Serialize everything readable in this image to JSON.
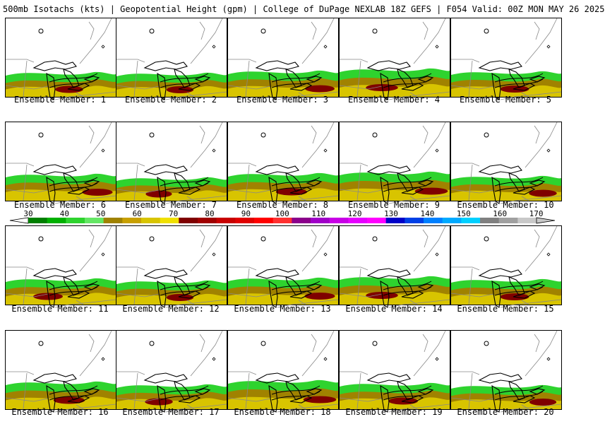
{
  "title": "500mb Isotachs (kts) | Geopotential Height (gpm) | College of DuPage NEXLAB   18Z GEFS | F054 Valid: 00Z MON MAY 26 2025",
  "member_label_prefix": "Ensemble Member: ",
  "members": [
    {
      "n": "1",
      "wave": 0.3,
      "pos": 1
    },
    {
      "n": "2",
      "wave": 0.2,
      "pos": 1
    },
    {
      "n": "3",
      "wave": 0.5,
      "pos": 2
    },
    {
      "n": "4",
      "wave": 0.8,
      "pos": 0
    },
    {
      "n": "5",
      "wave": 0.4,
      "pos": 1
    },
    {
      "n": "6",
      "wave": 0.6,
      "pos": 2
    },
    {
      "n": "7",
      "wave": 0.1,
      "pos": 0
    },
    {
      "n": "8",
      "wave": 0.7,
      "pos": 1
    },
    {
      "n": "9",
      "wave": 0.9,
      "pos": 2
    },
    {
      "n": "10",
      "wave": 0.3,
      "pos": 2
    },
    {
      "n": "11",
      "wave": 0.5,
      "pos": 0
    },
    {
      "n": "12",
      "wave": 0.2,
      "pos": 1
    },
    {
      "n": "13",
      "wave": 0.6,
      "pos": 2
    },
    {
      "n": "14",
      "wave": 0.8,
      "pos": 0
    },
    {
      "n": "15",
      "wave": 0.4,
      "pos": 1
    },
    {
      "n": "16",
      "wave": 0.7,
      "pos": 1
    },
    {
      "n": "17",
      "wave": 0.3,
      "pos": 0
    },
    {
      "n": "18",
      "wave": 0.9,
      "pos": 2
    },
    {
      "n": "19",
      "wave": 0.5,
      "pos": 1
    },
    {
      "n": "20",
      "wave": 0.2,
      "pos": 2
    }
  ],
  "colorbar": {
    "tick_labels": [
      "30",
      "40",
      "50",
      "60",
      "70",
      "80",
      "90",
      "100",
      "110",
      "120",
      "130",
      "140",
      "150",
      "160",
      "170"
    ],
    "colors": [
      "#007f00",
      "#00b000",
      "#2ed32e",
      "#64e664",
      "#a08200",
      "#c8a000",
      "#d8c400",
      "#f0e000",
      "#7f0000",
      "#a00000",
      "#c80000",
      "#e00000",
      "#ff0000",
      "#ff3030",
      "#8b008b",
      "#a000c8",
      "#c800e6",
      "#e600ff",
      "#ff00ff",
      "#0000c8",
      "#0040e6",
      "#0080ff",
      "#00aaff",
      "#00d0ff",
      "#808080",
      "#a0a0a0",
      "#c8c8c8"
    ]
  }
}
